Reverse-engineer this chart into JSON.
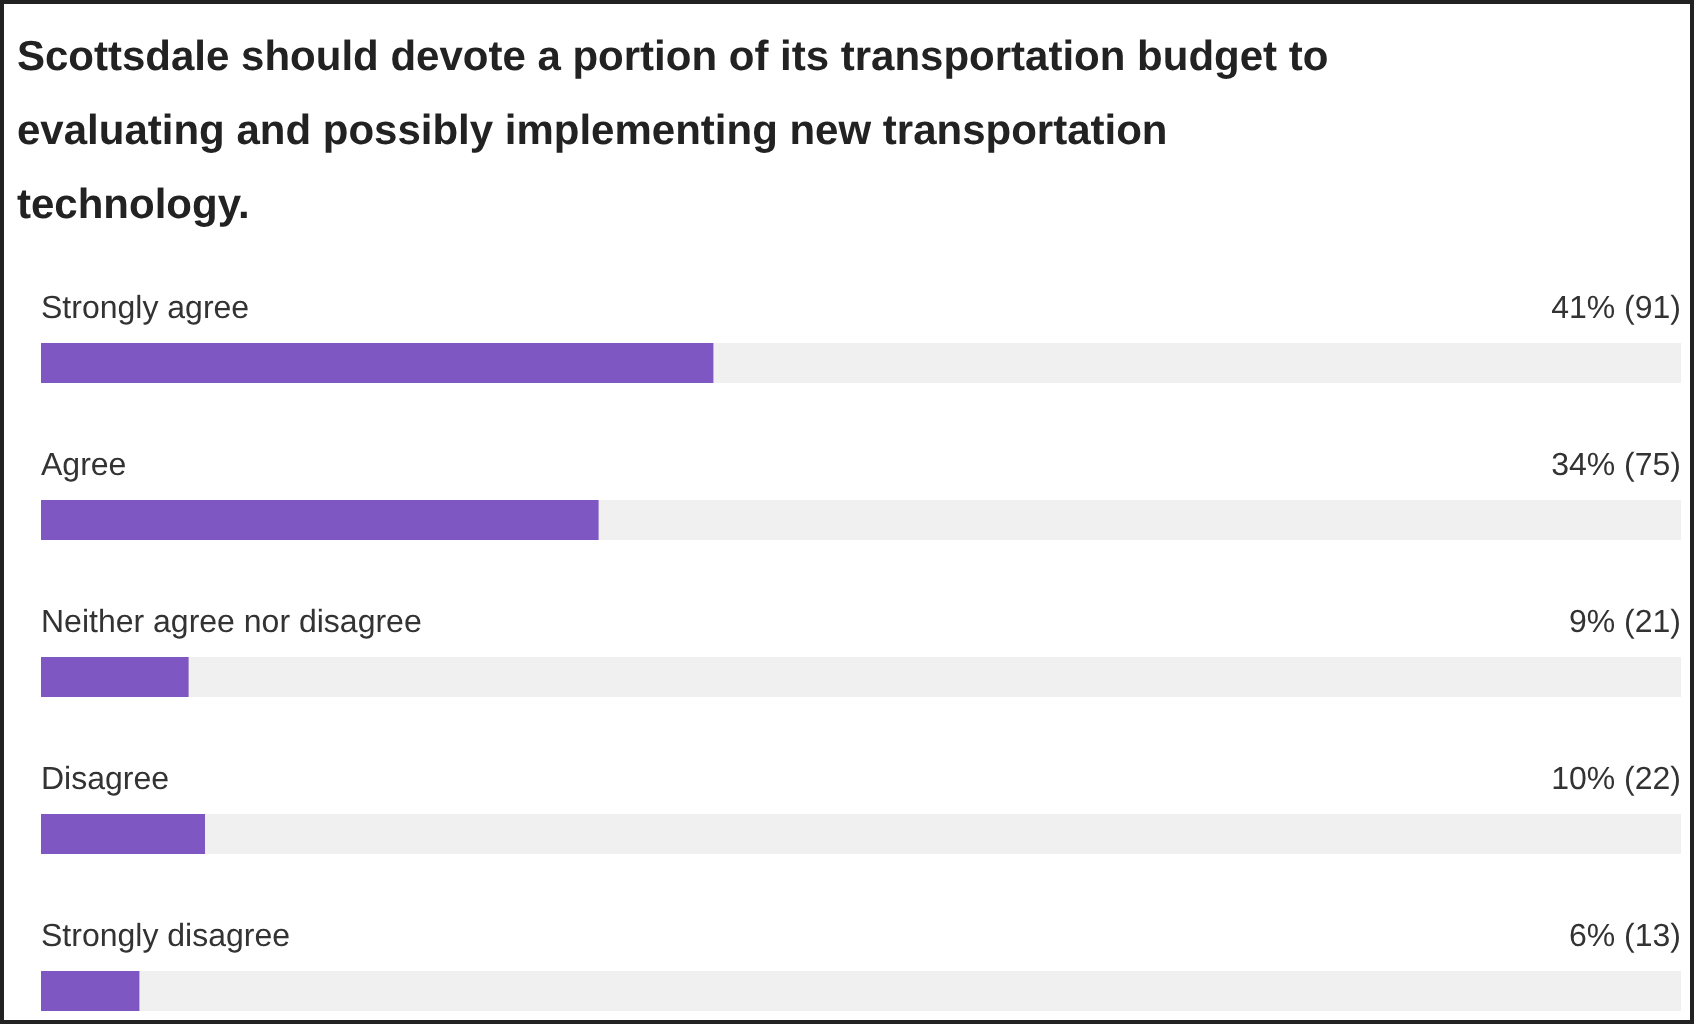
{
  "chart_data": {
    "type": "bar",
    "orientation": "horizontal",
    "title": "Scottsdale should devote a portion of its transportation budget to evaluating and possibly implementing new transportation technology.",
    "categories": [
      "Strongly agree",
      "Agree",
      "Neither agree nor disagree",
      "Disagree",
      "Strongly disagree"
    ],
    "values": [
      41,
      34,
      9,
      10,
      6
    ],
    "value_labels": [
      "41% (91)",
      "34% (75)",
      "9% (21)",
      "10% (22)",
      "6% (13)"
    ],
    "color": "#7e57c2",
    "xlim": [
      0,
      100
    ],
    "tick_labels": false
  }
}
